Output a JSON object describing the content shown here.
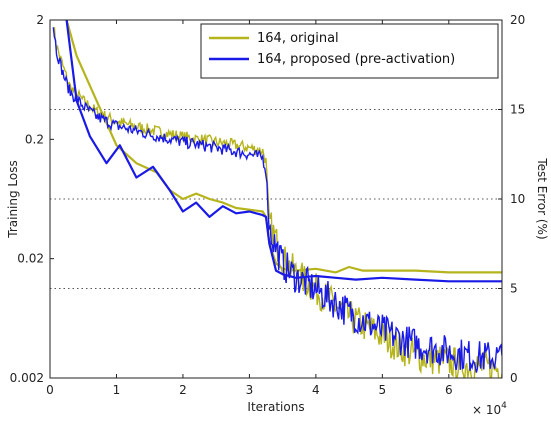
{
  "chart_data": {
    "type": "line",
    "title": "",
    "xlabel": "Iterations",
    "x_multiplier": "× 10",
    "x_multiplier_exp": "4",
    "ylabel_left": "Training Loss",
    "ylabel_right": "Test Error (%)",
    "xlim": [
      0,
      6.8
    ],
    "ylim_left": [
      0.002,
      2
    ],
    "ylim_right": [
      0,
      20
    ],
    "left_scale": "log",
    "x_ticks": [
      "0",
      "1",
      "2",
      "3",
      "4",
      "5",
      "6"
    ],
    "y_left_ticks": [
      "2",
      "0.2",
      "0.02",
      "0.002"
    ],
    "y_right_ticks": [
      "20",
      "15",
      "10",
      "5",
      "0"
    ],
    "gridlines_right": [
      15,
      10,
      5
    ],
    "grid": "dotted horizontal at 5, 10, 15 (%)",
    "legend_position": "top-right",
    "colors": {
      "original": "#b5b41c",
      "proposed": "#1a1ae6"
    },
    "series": [
      {
        "name": "164, original",
        "color": "#b5b41c",
        "test_error": {
          "x": [
            0.25,
            0.4,
            0.7,
            1.0,
            1.3,
            1.6,
            1.8,
            2.0,
            2.2,
            2.4,
            2.6,
            2.8,
            3.0,
            3.2,
            3.25,
            3.3,
            3.4,
            3.5,
            3.7,
            4.0,
            4.3,
            4.5,
            4.7,
            5.0,
            5.5,
            6.0,
            6.5,
            6.8
          ],
          "y": [
            20,
            18.0,
            15.5,
            13.0,
            12.0,
            11.5,
            10.5,
            10.0,
            10.3,
            10.0,
            9.8,
            9.5,
            9.4,
            9.3,
            9.0,
            7.5,
            6.4,
            6.1,
            6.0,
            6.1,
            5.9,
            6.2,
            6.0,
            6.0,
            6.0,
            5.9,
            5.9,
            5.9
          ]
        },
        "training_loss": {
          "x": [
            0.05,
            0.1,
            0.2,
            0.3,
            0.5,
            0.7,
            1.0,
            1.5,
            2.0,
            2.5,
            3.0,
            3.2,
            3.25,
            3.3,
            3.5,
            3.7,
            4.0,
            4.3,
            4.6,
            5.0,
            5.3,
            5.6,
            6.0,
            6.4,
            6.8
          ],
          "y": [
            1.8,
            1.2,
            0.8,
            0.55,
            0.42,
            0.34,
            0.28,
            0.24,
            0.21,
            0.19,
            0.17,
            0.16,
            0.13,
            0.04,
            0.02,
            0.015,
            0.011,
            0.008,
            0.006,
            0.0045,
            0.0035,
            0.003,
            0.0027,
            0.0025,
            0.0024
          ]
        }
      },
      {
        "name": "164, proposed (pre-activation)",
        "color": "#1a1ae6",
        "test_error": {
          "x": [
            0.25,
            0.4,
            0.6,
            0.85,
            1.05,
            1.3,
            1.55,
            1.8,
            2.0,
            2.2,
            2.4,
            2.6,
            2.8,
            3.0,
            3.2,
            3.25,
            3.3,
            3.4,
            3.5,
            3.7,
            4.0,
            4.3,
            4.6,
            5.0,
            5.5,
            6.0,
            6.5,
            6.8
          ],
          "y": [
            20,
            15.5,
            13.5,
            12.0,
            13.0,
            11.2,
            11.8,
            10.5,
            9.3,
            9.8,
            9.0,
            9.6,
            9.2,
            9.3,
            9.1,
            9.0,
            7.5,
            6.0,
            5.8,
            5.6,
            5.7,
            5.6,
            5.5,
            5.6,
            5.5,
            5.4,
            5.4,
            5.4
          ]
        },
        "training_loss": {
          "x": [
            0.05,
            0.1,
            0.2,
            0.3,
            0.5,
            0.7,
            1.0,
            1.5,
            2.0,
            2.5,
            3.0,
            3.2,
            3.25,
            3.3,
            3.5,
            3.7,
            4.0,
            4.3,
            4.6,
            5.0,
            5.3,
            5.6,
            6.0,
            6.4,
            6.8
          ],
          "y": [
            1.8,
            1.1,
            0.7,
            0.5,
            0.38,
            0.31,
            0.26,
            0.22,
            0.19,
            0.17,
            0.15,
            0.14,
            0.11,
            0.035,
            0.018,
            0.014,
            0.011,
            0.0085,
            0.0065,
            0.005,
            0.0042,
            0.0037,
            0.0033,
            0.003,
            0.003
          ]
        }
      }
    ]
  }
}
